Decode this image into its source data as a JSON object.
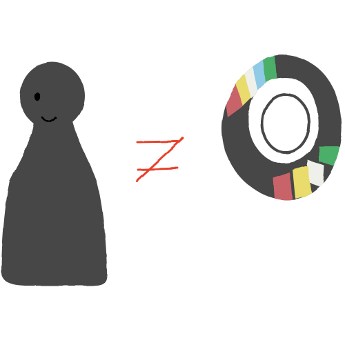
{
  "scene": {
    "background": "#ffffff",
    "figure": {
      "icon": "pawn-figure-icon",
      "body_color": "#474747",
      "features": [
        "eye",
        "smile"
      ],
      "feature_color": "#000000"
    },
    "relation": {
      "icon": "not-equal-icon",
      "color": "#e8412a"
    },
    "ring": {
      "icon": "striped-ring-icon",
      "base_color": "#474747",
      "stripe_colors": [
        "#4caf6a",
        "#8fcbe6",
        "#f0f0ea",
        "#e9dc6c",
        "#c9636b"
      ]
    }
  }
}
